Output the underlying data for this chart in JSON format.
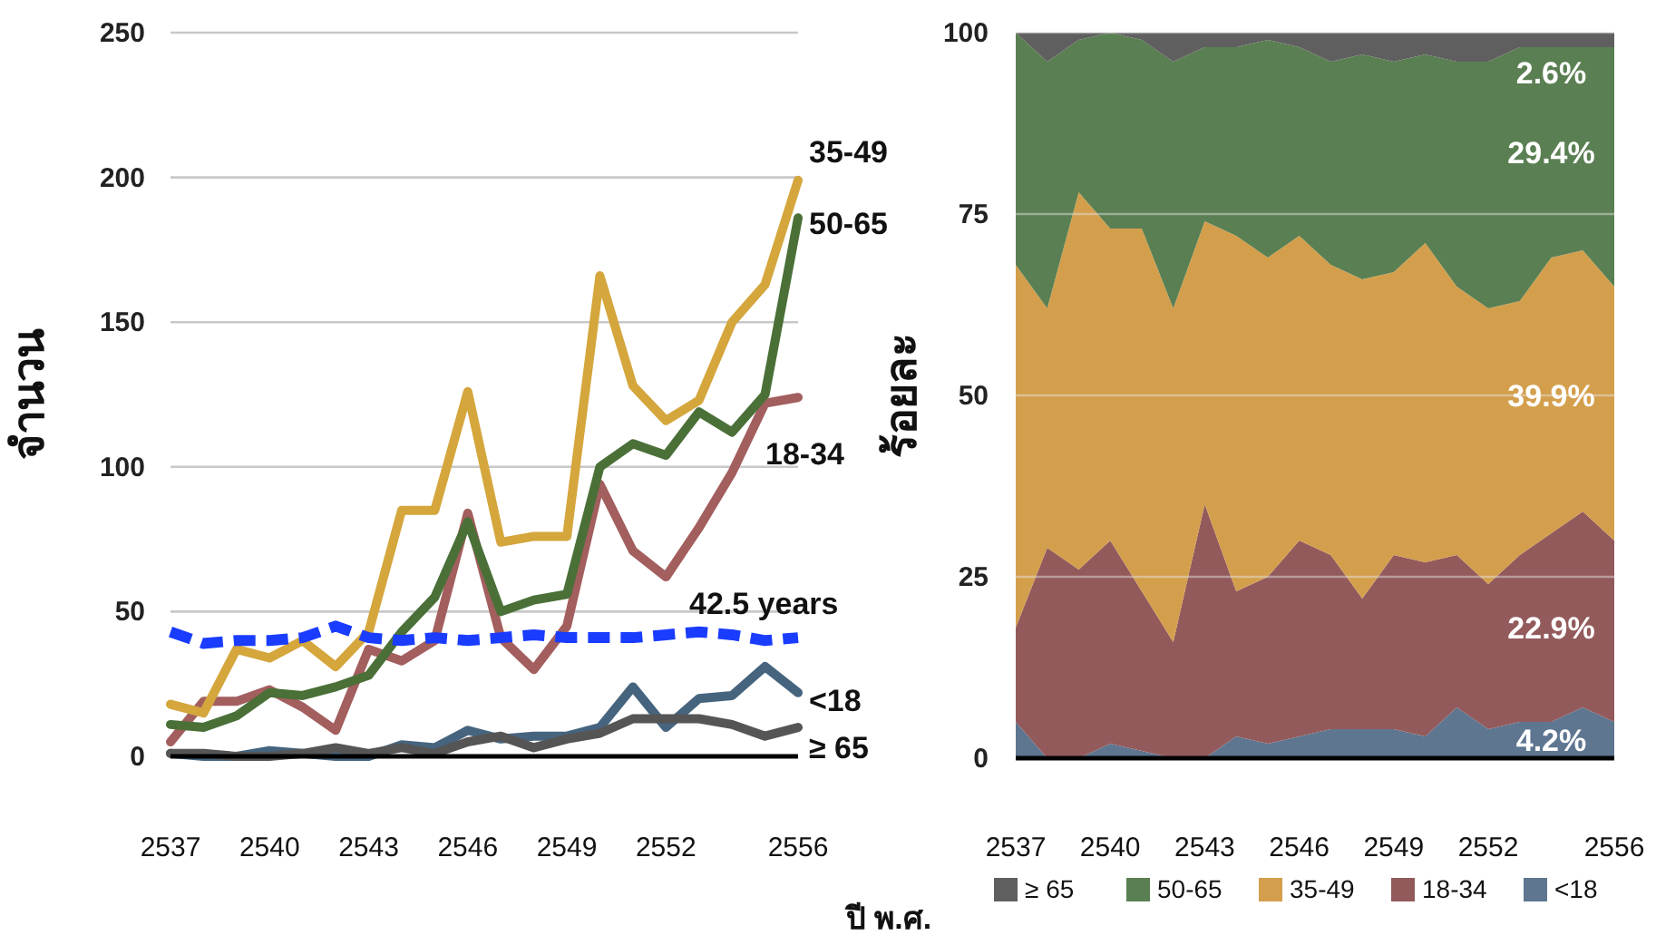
{
  "chart_data": [
    {
      "type": "line",
      "ylabel": "จำนวน",
      "xlabel": "ปี พ.ศ.",
      "categories": [
        "2537",
        null,
        null,
        "2540",
        null,
        null,
        "2543",
        null,
        null,
        "2546",
        null,
        null,
        "2549",
        null,
        null,
        "2552",
        null,
        null,
        null,
        "2556"
      ],
      "ylim": [
        0,
        250
      ],
      "yticks": [
        0,
        50,
        100,
        150,
        200,
        250
      ],
      "grid": "y",
      "legend": false,
      "series": [
        {
          "name": "<18",
          "color": "#46647e",
          "values": [
            1,
            0,
            0,
            2,
            1,
            0,
            0,
            4,
            3,
            9,
            6,
            7,
            7,
            10,
            24,
            10,
            20,
            21,
            31,
            22
          ]
        },
        {
          "name": "18-34",
          "color": "#a35e5e",
          "values": [
            5,
            19,
            19,
            23,
            17,
            9,
            37,
            33,
            40,
            84,
            41,
            30,
            45,
            94,
            71,
            62,
            79,
            98,
            122,
            124
          ]
        },
        {
          "name": "35-49",
          "color": "#d4a63c",
          "values": [
            18,
            15,
            37,
            34,
            40,
            31,
            43,
            85,
            85,
            126,
            74,
            76,
            76,
            166,
            128,
            116,
            123,
            150,
            163,
            199
          ]
        },
        {
          "name": "50-65",
          "color": "#4a7038",
          "values": [
            11,
            10,
            14,
            22,
            21,
            24,
            28,
            43,
            55,
            81,
            50,
            54,
            56,
            100,
            108,
            104,
            119,
            112,
            125,
            186
          ]
        },
        {
          "name": "≥ 65",
          "color": "#555555",
          "values": [
            1,
            1,
            0,
            0,
            1,
            3,
            1,
            3,
            1,
            5,
            7,
            3,
            6,
            8,
            13,
            13,
            13,
            11,
            7,
            10
          ]
        },
        {
          "name": "42.5 years",
          "color": "#1a3cff",
          "line_style": "dashed",
          "values": [
            43,
            39,
            40,
            40,
            41,
            45,
            41,
            40,
            41,
            40,
            41,
            42,
            41,
            41,
            41,
            42,
            43,
            42,
            40,
            41
          ]
        }
      ]
    },
    {
      "type": "area",
      "stacked": true,
      "ylabel": "ร้อยละ",
      "categories": [
        "2537",
        null,
        null,
        "2540",
        null,
        null,
        "2543",
        null,
        null,
        "2546",
        null,
        null,
        "2549",
        null,
        null,
        "2552",
        null,
        null,
        null,
        "2556"
      ],
      "ylim": [
        0,
        100
      ],
      "yticks": [
        0,
        25,
        50,
        75,
        100
      ],
      "grid": "y",
      "legend": "bottom",
      "series": [
        {
          "name": "<18",
          "color": "#5e7690",
          "values": [
            5,
            0,
            0,
            2,
            1,
            0,
            0,
            3,
            2,
            3,
            4,
            4,
            4,
            3,
            7,
            4,
            5,
            5,
            7,
            5
          ]
        },
        {
          "name": "18-34",
          "color": "#935a5c",
          "values": [
            13,
            29,
            26,
            28,
            22,
            16,
            35,
            20,
            23,
            27,
            24,
            18,
            24,
            24,
            21,
            20,
            23,
            26,
            27,
            25
          ]
        },
        {
          "name": "35-49",
          "color": "#d49f4c",
          "values": [
            50,
            33,
            52,
            43,
            50,
            46,
            39,
            49,
            44,
            42,
            40,
            44,
            39,
            44,
            37,
            38,
            35,
            38,
            36,
            35
          ]
        },
        {
          "name": "50-65",
          "color": "#5a7f52",
          "values": [
            32,
            34,
            21,
            27,
            26,
            34,
            24,
            26,
            30,
            26,
            28,
            31,
            29,
            26,
            31,
            34,
            35,
            29,
            28,
            33
          ]
        },
        {
          "name": "≥ 65",
          "color": "#5f5f5f",
          "values": [
            0,
            4,
            1,
            0,
            1,
            4,
            2,
            2,
            1,
            2,
            4,
            3,
            4,
            3,
            4,
            4,
            2,
            2,
            2,
            2
          ]
        }
      ],
      "annotations": [
        "2.6%",
        "29.4%",
        "39.9%",
        "22.9%",
        "4.2%"
      ]
    }
  ]
}
